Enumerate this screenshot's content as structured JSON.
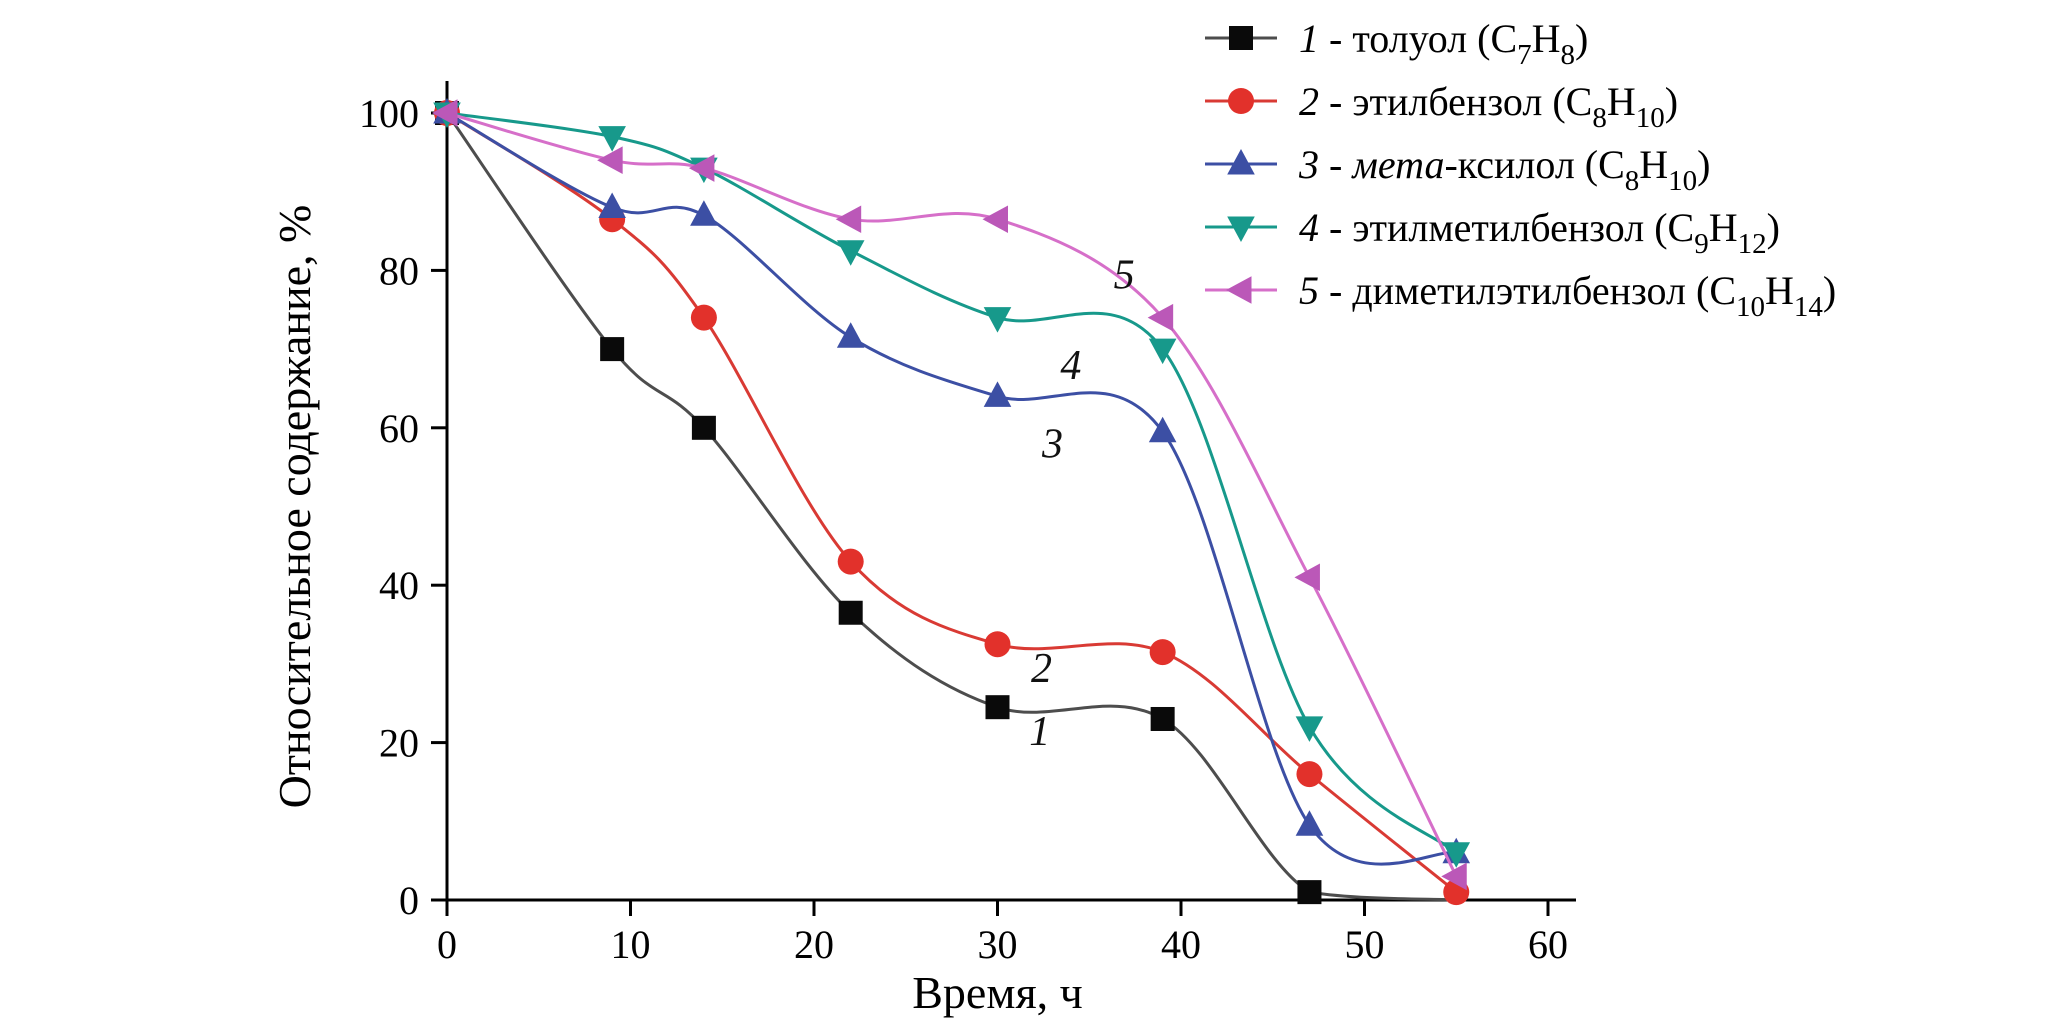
{
  "figure": {
    "background": "#ffffff"
  },
  "chart_data": {
    "type": "line",
    "title": "",
    "xlabel": "Время, ч",
    "ylabel": "Относительное содержание, %",
    "xlim": [
      0,
      60
    ],
    "ylim": [
      0,
      100
    ],
    "x_ticks": [
      0,
      10,
      20,
      30,
      40,
      50,
      60
    ],
    "y_ticks": [
      0,
      20,
      40,
      60,
      80,
      100
    ],
    "grid": false,
    "legend_position": "top-right",
    "axis_color": "#000000",
    "series": [
      {
        "id": 1,
        "label": "1 - толуол (C7H8)",
        "legend_runs": [
          {
            "t": "1",
            "i": true
          },
          {
            "t": " - толуол (C"
          },
          {
            "t": "7",
            "sub": true
          },
          {
            "t": "H"
          },
          {
            "t": "8",
            "sub": true
          },
          {
            "t": ")"
          }
        ],
        "marker": "square",
        "color": "#0a0a0a",
        "line_color": "#4d4d4d",
        "x": [
          0,
          9,
          14,
          22,
          30,
          39,
          47
        ],
        "y": [
          100,
          70,
          60,
          36.5,
          24.5,
          23,
          1
        ],
        "line_extra": [
          {
            "x": 55,
            "y": 0
          }
        ]
      },
      {
        "id": 2,
        "label": "2 - этилбензол (C8H10)",
        "legend_runs": [
          {
            "t": "2",
            "i": true
          },
          {
            "t": " - этилбензол (C"
          },
          {
            "t": "8",
            "sub": true
          },
          {
            "t": "H"
          },
          {
            "t": "10",
            "sub": true
          },
          {
            "t": ")"
          }
        ],
        "marker": "circle",
        "color": "#e2312b",
        "line_color": "#d93a34",
        "x": [
          0,
          9,
          14,
          22,
          30,
          39,
          47,
          55
        ],
        "y": [
          100,
          86.5,
          74,
          43,
          32.5,
          31.5,
          16,
          1
        ],
        "line_extra": []
      },
      {
        "id": 3,
        "label": "3 - мета-ксилол (C8H10)",
        "legend_runs": [
          {
            "t": "3",
            "i": true
          },
          {
            "t": " - "
          },
          {
            "t": "мета",
            "i": true
          },
          {
            "t": "-ксилол (C"
          },
          {
            "t": "8",
            "sub": true
          },
          {
            "t": "H"
          },
          {
            "t": "10",
            "sub": true
          },
          {
            "t": ")"
          }
        ],
        "marker": "triangle-up",
        "color": "#3c4fa4",
        "line_color": "#3c4fa4",
        "x": [
          0,
          9,
          14,
          22,
          30,
          39,
          47,
          55
        ],
        "y": [
          100,
          88,
          87,
          71.5,
          64,
          59.5,
          9.5,
          6
        ],
        "line_extra": []
      },
      {
        "id": 4,
        "label": "4 - этилметилбензол (C9H12)",
        "legend_runs": [
          {
            "t": "4",
            "i": true
          },
          {
            "t": " - этилметилбензол (C"
          },
          {
            "t": "9",
            "sub": true
          },
          {
            "t": "H"
          },
          {
            "t": "12",
            "sub": true
          },
          {
            "t": ")"
          }
        ],
        "marker": "triangle-down",
        "color": "#17998b",
        "line_color": "#17998b",
        "x": [
          0,
          9,
          14,
          22,
          30,
          39,
          47,
          55
        ],
        "y": [
          100,
          97,
          93,
          82.5,
          74,
          70,
          22,
          6
        ],
        "line_extra": []
      },
      {
        "id": 5,
        "label": "5 - диметилэтилбензол (C10H14)",
        "legend_runs": [
          {
            "t": "5",
            "i": true
          },
          {
            "t": " - диметилэтилбензол (C"
          },
          {
            "t": "10",
            "sub": true
          },
          {
            "t": "H"
          },
          {
            "t": "14",
            "sub": true
          },
          {
            "t": ")"
          }
        ],
        "marker": "triangle-left",
        "color": "#bb58b8",
        "line_color": "#d66fc9",
        "x": [
          0,
          9,
          14,
          22,
          30,
          39,
          47,
          55
        ],
        "y": [
          100,
          94,
          93,
          86.5,
          86.5,
          74,
          41,
          3
        ],
        "line_extra": []
      }
    ],
    "curve_labels": [
      {
        "text": "5",
        "x": 36.9,
        "y": 79.5
      },
      {
        "text": "4",
        "x": 34.0,
        "y": 68.0
      },
      {
        "text": "3",
        "x": 33.0,
        "y": 58.0
      },
      {
        "text": "2",
        "x": 32.4,
        "y": 29.5
      },
      {
        "text": "1",
        "x": 32.3,
        "y": 21.5
      }
    ]
  }
}
